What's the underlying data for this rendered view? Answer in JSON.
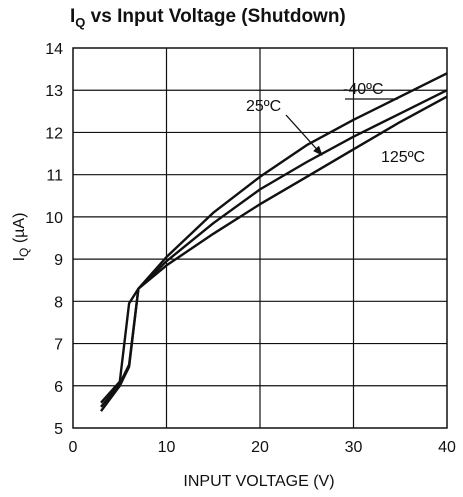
{
  "chart_data": {
    "type": "line",
    "title": {
      "main": "I",
      "sub": "Q",
      "rest": " vs Input Voltage (Shutdown)"
    },
    "xlabel": "INPUT VOLTAGE (V)",
    "ylabel": {
      "main": "I",
      "sub": "Q",
      "rest": " (µA)"
    },
    "xlim": [
      0,
      40
    ],
    "ylim": [
      5,
      14
    ],
    "x_ticks": [
      0,
      10,
      20,
      30,
      40
    ],
    "y_ticks": [
      5,
      6,
      7,
      8,
      9,
      10,
      11,
      12,
      13,
      14
    ],
    "grid": true,
    "series": [
      {
        "name": "-40ºC",
        "x": [
          3,
          5,
          6,
          7,
          10,
          15,
          20,
          25,
          30,
          35,
          40
        ],
        "y": [
          5.6,
          6.1,
          7.95,
          8.3,
          9.05,
          10.1,
          10.95,
          11.7,
          12.3,
          12.85,
          13.4
        ]
      },
      {
        "name": "25ºC",
        "x": [
          3,
          5,
          6,
          7,
          10,
          15,
          20,
          25,
          30,
          35,
          40
        ],
        "y": [
          5.5,
          6.05,
          6.5,
          8.3,
          8.95,
          9.85,
          10.65,
          11.3,
          11.9,
          12.45,
          13.0
        ]
      },
      {
        "name": "125ºC",
        "x": [
          3,
          5,
          6,
          7,
          10,
          15,
          20,
          25,
          30,
          35,
          40
        ],
        "y": [
          5.4,
          6.0,
          6.45,
          8.3,
          8.85,
          9.6,
          10.3,
          10.95,
          11.6,
          12.25,
          12.85
        ]
      }
    ],
    "annotations": [
      {
        "text": "-40ºC",
        "series": "-40ºC"
      },
      {
        "text": "25ºC",
        "series": "25ºC",
        "arrow": true
      },
      {
        "text": "125ºC",
        "series": "125ºC"
      }
    ],
    "colors": {
      "line": "#111111",
      "grid": "#111111",
      "background": "#ffffff"
    }
  }
}
